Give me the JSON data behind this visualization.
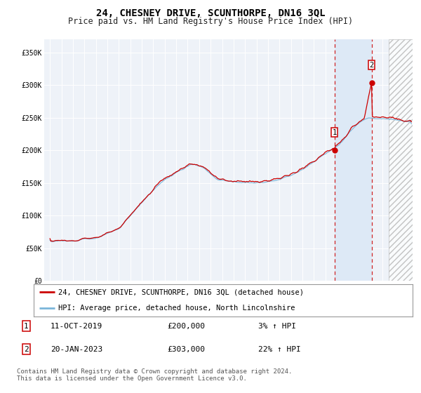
{
  "title": "24, CHESNEY DRIVE, SCUNTHORPE, DN16 3QL",
  "subtitle": "Price paid vs. HM Land Registry's House Price Index (HPI)",
  "ylim": [
    0,
    370000
  ],
  "yticks": [
    0,
    50000,
    100000,
    150000,
    200000,
    250000,
    300000,
    350000
  ],
  "ytick_labels": [
    "£0",
    "£50K",
    "£100K",
    "£150K",
    "£200K",
    "£250K",
    "£300K",
    "£350K"
  ],
  "hpi_color": "#7ab5d9",
  "price_color": "#cc0000",
  "point1_x": 2019.79,
  "point1_y": 200000,
  "point2_x": 2023.04,
  "point2_y": 303000,
  "hatch_start": 2024.5,
  "xmin": 1994.5,
  "xmax": 2026.6,
  "legend_line1": "24, CHESNEY DRIVE, SCUNTHORPE, DN16 3QL (detached house)",
  "legend_line2": "HPI: Average price, detached house, North Lincolnshire",
  "point1_date": "11-OCT-2019",
  "point1_price": "£200,000",
  "point1_pct": "3%",
  "point2_date": "20-JAN-2023",
  "point2_price": "£303,000",
  "point2_pct": "22%",
  "footnote_line1": "Contains HM Land Registry data © Crown copyright and database right 2024.",
  "footnote_line2": "This data is licensed under the Open Government Licence v3.0.",
  "bg_color": "#ffffff",
  "plot_bg": "#eef2f8",
  "highlight_bg": "#dde9f6",
  "grid_color": "#ffffff",
  "title_fontsize": 10,
  "subtitle_fontsize": 8.5,
  "tick_fontsize": 7,
  "legend_fontsize": 7.5,
  "footnote_fontsize": 6.5
}
